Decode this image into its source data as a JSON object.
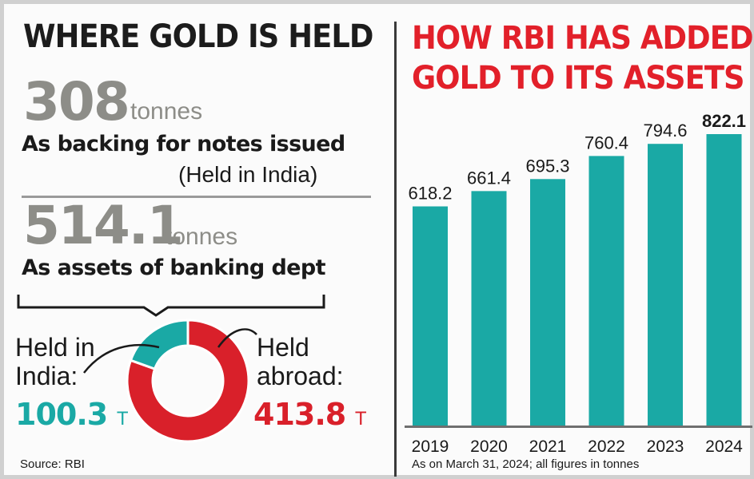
{
  "left": {
    "headline": "WHERE GOLD IS HELD",
    "stat1": {
      "value": "308",
      "unit": "tonnes",
      "desc": "As backing for notes issued",
      "note": "(Held in India)"
    },
    "stat2": {
      "value": "514.1",
      "unit": "tonnes",
      "desc": "As assets of banking dept"
    },
    "split": {
      "india": {
        "label_line1": "Held in",
        "label_line2": "India:",
        "value": "100.3",
        "unit": "T",
        "tonnes": 100.3,
        "color": "#1aa9a5"
      },
      "abroad": {
        "label_line1": "Held",
        "label_line2": "abroad:",
        "value": "413.8",
        "unit": "T",
        "tonnes": 413.8,
        "color": "#d9202a"
      }
    },
    "source": "Source: RBI"
  },
  "right": {
    "headline_line1": "HOW RBI HAS ADDED",
    "headline_line2": "GOLD TO ITS ASSETS",
    "footnote": "As on March 31, 2024; all figures in tonnes"
  },
  "chart_data": [
    {
      "type": "bar",
      "title": "HOW RBI HAS ADDED GOLD TO ITS ASSETS",
      "categories": [
        "2019",
        "2020",
        "2021",
        "2022",
        "2023",
        "2024"
      ],
      "values": [
        618.2,
        661.4,
        695.3,
        760.4,
        794.6,
        822.1
      ],
      "value_labels": [
        "618.2",
        "661.4",
        "695.3",
        "760.4",
        "794.6",
        "822.1"
      ],
      "ylim": [
        0,
        822.1
      ],
      "bar_color": "#1aa9a5",
      "grid": false,
      "data_labels": "above bars",
      "emphasized_label": "822.1"
    },
    {
      "type": "pie",
      "style": "donut",
      "labels": [
        "Held in India",
        "Held abroad"
      ],
      "values": [
        100.3,
        413.8
      ],
      "colors": [
        "#1aa9a5",
        "#d9202a"
      ]
    }
  ]
}
